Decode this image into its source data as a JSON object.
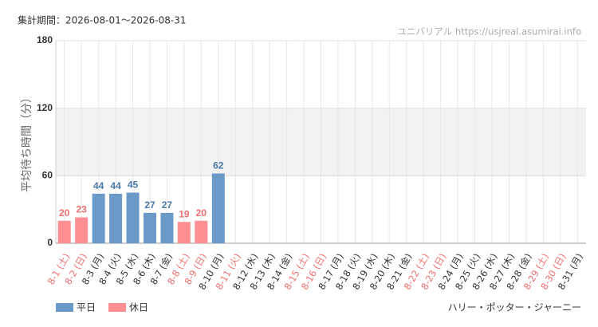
{
  "chart_data": {
    "type": "bar",
    "title": "集計期間：2026-08-01〜2026-08-31",
    "source": "ユニバリアル https://usjreal.asumirai.info",
    "attraction": "ハリー・ポッター・ジャーニー",
    "y_label": "平均待ち時間（分）",
    "categories": [
      "8-1 (土)",
      "8-2 (日)",
      "8-3 (月)",
      "8-4 (火)",
      "8-5 (水)",
      "8-6 (木)",
      "8-7 (金)",
      "8-8 (土)",
      "8-9 (日)",
      "8-10 (月)",
      "8-11 (火)",
      "8-12 (水)",
      "8-13 (木)",
      "8-14 (金)",
      "8-15 (土)",
      "8-16 (日)",
      "8-17 (月)",
      "8-18 (火)",
      "8-19 (水)",
      "8-20 (木)",
      "8-21 (金)",
      "8-22 (土)",
      "8-23 (日)",
      "8-24 (月)",
      "8-25 (火)",
      "8-26 (水)",
      "8-27 (木)",
      "8-28 (金)",
      "8-29 (土)",
      "8-30 (日)",
      "8-31 (月)"
    ],
    "category_colors": [
      "#f07070",
      "#f07070",
      "#333333",
      "#333333",
      "#333333",
      "#333333",
      "#333333",
      "#f07070",
      "#f07070",
      "#333333",
      "#f07070",
      "#333333",
      "#333333",
      "#333333",
      "#f07070",
      "#f07070",
      "#333333",
      "#333333",
      "#333333",
      "#333333",
      "#333333",
      "#f07070",
      "#f07070",
      "#333333",
      "#333333",
      "#333333",
      "#333333",
      "#333333",
      "#f07070",
      "#f07070",
      "#333333"
    ],
    "series": [
      {
        "name": "平日",
        "color": "#6b9ac8",
        "label_color": "#4a78a8",
        "values": [
          null,
          null,
          44,
          44,
          45,
          27,
          27,
          null,
          null,
          62,
          null,
          null,
          null,
          null,
          null,
          null,
          null,
          null,
          null,
          null,
          null,
          null,
          null,
          null,
          null,
          null,
          null,
          null,
          null,
          null,
          null
        ]
      },
      {
        "name": "休日",
        "color": "#ff8f93",
        "label_color": "#f07070",
        "values": [
          20,
          23,
          null,
          null,
          null,
          null,
          null,
          19,
          20,
          null,
          null,
          null,
          null,
          null,
          null,
          null,
          null,
          null,
          null,
          null,
          null,
          null,
          null,
          null,
          null,
          null,
          null,
          null,
          null,
          null,
          null
        ]
      }
    ],
    "ylim": [
      0,
      180
    ],
    "yticks": [
      0,
      60,
      120,
      180
    ],
    "grid": true,
    "alternate_band_shading": true
  }
}
